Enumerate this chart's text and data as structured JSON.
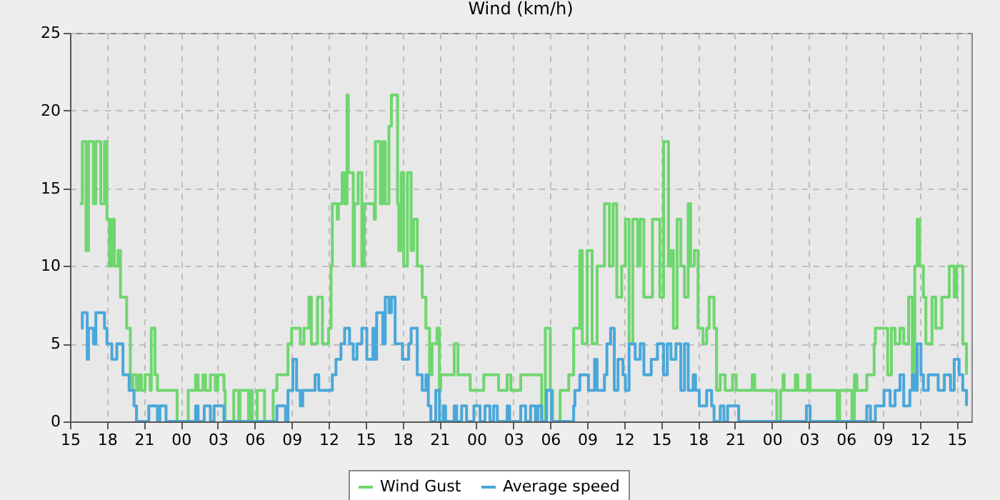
{
  "chart_data": {
    "type": "step",
    "title": "Wind (km/h)",
    "xlim": [
      15,
      88.2
    ],
    "xticks": [
      15,
      18,
      21,
      {
        "value": 24,
        "label": "00"
      },
      {
        "value": 27,
        "label": "03"
      },
      {
        "value": 30,
        "label": "06"
      },
      {
        "value": 33,
        "label": "09"
      },
      {
        "value": 36,
        "label": "12"
      },
      {
        "value": 39,
        "label": "15"
      },
      {
        "value": 42,
        "label": "18"
      },
      {
        "value": 45,
        "label": "21"
      },
      {
        "value": 48,
        "label": "00"
      },
      {
        "value": 51,
        "label": "03"
      },
      {
        "value": 54,
        "label": "06"
      },
      {
        "value": 57,
        "label": "09"
      },
      {
        "value": 60,
        "label": "12"
      },
      {
        "value": 63,
        "label": "15"
      },
      {
        "value": 66,
        "label": "18"
      },
      {
        "value": 69,
        "label": "21"
      },
      {
        "value": 72,
        "label": "00"
      },
      {
        "value": 75,
        "label": "03"
      },
      {
        "value": 78,
        "label": "06"
      },
      {
        "value": 81,
        "label": "09"
      },
      {
        "value": 84,
        "label": "12"
      },
      {
        "value": 87,
        "label": "15"
      }
    ],
    "ylim": [
      0,
      25
    ],
    "yticks": [
      0,
      5,
      10,
      15,
      20,
      25
    ],
    "grid": true,
    "legend": "bottom",
    "line_style": "solid",
    "series": [
      {
        "name": "Wind Gust",
        "color": "#6fd66f",
        "x": [
          15.8,
          16.0,
          16.3,
          16.5,
          16.9,
          17.1,
          17.5,
          17.8,
          18.0,
          18.2,
          18.4,
          18.6,
          18.9,
          19.1,
          19.6,
          19.9,
          20.1,
          20.4,
          20.6,
          20.8,
          21.1,
          21.5,
          21.6,
          21.9,
          22.1,
          23.7,
          24.6,
          25.2,
          25.4,
          25.8,
          26.0,
          26.4,
          26.8,
          27.0,
          27.5,
          27.6,
          28.3,
          28.7,
          28.8,
          29.5,
          29.6,
          29.8,
          30.2,
          30.8,
          31.5,
          31.8,
          32.7,
          33.0,
          33.7,
          34.0,
          34.4,
          34.6,
          35.1,
          35.5,
          36.0,
          36.2,
          36.3,
          36.7,
          36.8,
          37.1,
          37.3,
          37.5,
          37.6,
          38.0,
          38.1,
          38.4,
          38.7,
          38.9,
          39.7,
          39.8,
          40.2,
          40.4,
          40.6,
          40.9,
          41.1,
          41.6,
          41.7,
          41.9,
          42.1,
          42.4,
          42.7,
          42.9,
          43.2,
          43.6,
          43.9,
          44.2,
          44.4,
          44.8,
          45.0,
          45.1,
          46.2,
          46.5,
          47.5,
          48.6,
          49.8,
          50.5,
          50.8,
          51.6,
          53.3,
          53.6,
          54.0,
          54.2,
          54.8,
          55.5,
          55.9,
          56.4,
          56.6,
          57.0,
          57.4,
          57.8,
          58.4,
          58.8,
          59.1,
          59.4,
          59.8,
          60.1,
          60.4,
          60.7,
          61.1,
          61.3,
          61.6,
          62.3,
          62.9,
          63.2,
          63.6,
          63.8,
          64.0,
          64.3,
          64.6,
          64.9,
          65.2,
          65.4,
          65.7,
          66.0,
          66.4,
          66.7,
          66.9,
          67.3,
          67.5,
          67.8,
          68.2,
          68.8,
          69.1,
          70.4,
          70.6,
          72.4,
          72.7,
          72.9,
          73.0,
          73.9,
          74.1,
          74.9,
          75.1,
          77.3,
          77.5,
          78.5,
          78.7,
          78.9,
          79.7,
          80.3,
          80.4,
          81.4,
          81.7,
          82.0,
          82.4,
          82.7,
          83.1,
          83.4,
          83.6,
          83.8,
          84.0,
          84.3,
          84.5,
          85.0,
          85.3,
          85.8,
          86.4,
          86.8,
          87.0,
          87.5,
          87.8
        ],
        "values": [
          14,
          18,
          11,
          18,
          14,
          18,
          14,
          18,
          13,
          10,
          13,
          10,
          11,
          8,
          6,
          2,
          3,
          2,
          3,
          2,
          3,
          2,
          6,
          3,
          2,
          0,
          2,
          3,
          2,
          3,
          2,
          3,
          2,
          3,
          2,
          0,
          2,
          0,
          2,
          0,
          2,
          0,
          2,
          0,
          2,
          3,
          5,
          6,
          5,
          6,
          8,
          5,
          8,
          5,
          6,
          10,
          14,
          13,
          14,
          16,
          14,
          21,
          16,
          10,
          14,
          16,
          10,
          14,
          13,
          18,
          14,
          18,
          14,
          19,
          21,
          14,
          11,
          16,
          10,
          16,
          11,
          13,
          10,
          8,
          6,
          3,
          5,
          6,
          2,
          3,
          5,
          3,
          2,
          3,
          2,
          3,
          2,
          3,
          0,
          6,
          2,
          0,
          2,
          3,
          6,
          11,
          5,
          11,
          5,
          10,
          14,
          10,
          14,
          8,
          10,
          13,
          5,
          13,
          10,
          13,
          8,
          13,
          8,
          18,
          10,
          11,
          6,
          13,
          10,
          8,
          14,
          10,
          11,
          6,
          5,
          6,
          8,
          6,
          2,
          3,
          2,
          3,
          2,
          3,
          2,
          0,
          2,
          3,
          2,
          3,
          2,
          3,
          2,
          0,
          2,
          0,
          3,
          2,
          3,
          5,
          6,
          3,
          6,
          5,
          6,
          5,
          8,
          3,
          10,
          13,
          10,
          8,
          5,
          8,
          6,
          8,
          10,
          8,
          10,
          5,
          3
        ]
      },
      {
        "name": "Average speed",
        "color": "#4aa7d9",
        "x": [
          15.9,
          16.0,
          16.4,
          16.5,
          16.9,
          17.1,
          17.8,
          18.0,
          18.4,
          18.8,
          19.3,
          19.8,
          20.2,
          20.4,
          21.4,
          22.1,
          22.3,
          22.8,
          25.2,
          25.4,
          25.9,
          26.4,
          26.7,
          27.5,
          31.8,
          32.5,
          32.7,
          33.1,
          33.4,
          33.7,
          33.9,
          34.9,
          35.2,
          36.3,
          36.6,
          37.0,
          37.3,
          37.7,
          38.0,
          38.3,
          38.7,
          39.0,
          39.1,
          39.6,
          39.7,
          39.9,
          40.4,
          40.6,
          40.9,
          41.1,
          41.4,
          42.0,
          42.5,
          42.7,
          43.2,
          43.6,
          43.9,
          44.1,
          44.3,
          44.7,
          45.0,
          45.3,
          45.5,
          46.2,
          46.4,
          46.8,
          47.2,
          47.8,
          48.3,
          48.7,
          49.1,
          49.4,
          49.7,
          50.5,
          50.7,
          51.6,
          52.0,
          52.4,
          52.8,
          53.0,
          53.3,
          53.7,
          54.1,
          55.9,
          56.0,
          56.4,
          57.1,
          57.6,
          57.8,
          58.4,
          58.6,
          58.9,
          59.2,
          59.5,
          59.9,
          60.1,
          60.4,
          60.9,
          61.3,
          61.6,
          62.2,
          62.7,
          63.2,
          63.5,
          63.8,
          64.2,
          64.6,
          64.9,
          65.2,
          65.6,
          65.8,
          66.1,
          66.7,
          67.1,
          67.3,
          67.8,
          68.1,
          68.4,
          69.3,
          74.8,
          75.1,
          79.7,
          80.0,
          80.4,
          81.1,
          81.6,
          82.0,
          82.4,
          82.7,
          83.2,
          83.4,
          83.6,
          83.8,
          84.1,
          84.3,
          84.7,
          85.5,
          86.0,
          86.5,
          86.8,
          87.2,
          87.5,
          87.8
        ],
        "values": [
          6,
          7,
          4,
          6,
          5,
          7,
          6,
          5,
          4,
          5,
          3,
          2,
          1,
          0,
          1,
          0,
          1,
          0,
          1,
          0,
          1,
          0,
          1,
          0,
          1,
          0,
          2,
          4,
          2,
          1,
          2,
          3,
          2,
          3,
          4,
          5,
          6,
          5,
          4,
          5,
          6,
          6,
          4,
          6,
          4,
          7,
          5,
          8,
          7,
          8,
          5,
          4,
          5,
          6,
          3,
          2,
          3,
          1,
          0,
          2,
          0,
          1,
          0,
          1,
          0,
          1,
          0,
          1,
          0,
          1,
          0,
          1,
          0,
          1,
          0,
          1,
          0,
          1,
          0,
          1,
          0,
          2,
          0,
          1,
          2,
          3,
          2,
          4,
          2,
          3,
          5,
          6,
          2,
          4,
          3,
          2,
          5,
          4,
          5,
          3,
          4,
          5,
          3,
          5,
          4,
          5,
          2,
          5,
          2,
          3,
          2,
          1,
          2,
          1,
          0,
          1,
          0,
          1,
          0,
          1,
          0,
          1,
          0,
          1,
          2,
          1,
          2,
          3,
          1,
          2,
          3,
          2,
          5,
          3,
          2,
          3,
          2,
          3,
          2,
          4,
          3,
          2,
          1
        ]
      }
    ]
  }
}
